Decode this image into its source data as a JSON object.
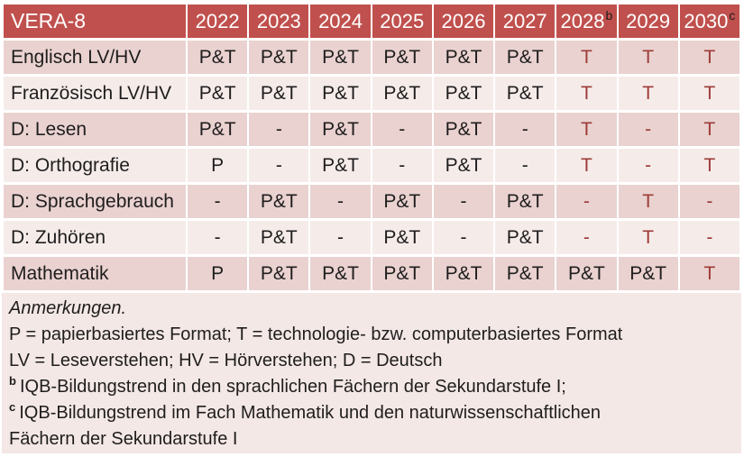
{
  "table": {
    "title": "VERA-8",
    "columns": [
      {
        "label": "2022",
        "sup": ""
      },
      {
        "label": "2023",
        "sup": ""
      },
      {
        "label": "2024",
        "sup": ""
      },
      {
        "label": "2025",
        "sup": ""
      },
      {
        "label": "2026",
        "sup": ""
      },
      {
        "label": "2027",
        "sup": ""
      },
      {
        "label": "2028",
        "sup": "b"
      },
      {
        "label": "2029",
        "sup": ""
      },
      {
        "label": "2030",
        "sup": "c"
      }
    ],
    "rows": [
      {
        "label": "Englisch LV/HV",
        "cells": [
          {
            "v": "P&T",
            "red": false
          },
          {
            "v": "P&T",
            "red": false
          },
          {
            "v": "P&T",
            "red": false
          },
          {
            "v": "P&T",
            "red": false
          },
          {
            "v": "P&T",
            "red": false
          },
          {
            "v": "P&T",
            "red": false
          },
          {
            "v": "T",
            "red": true
          },
          {
            "v": "T",
            "red": true
          },
          {
            "v": "T",
            "red": true
          }
        ]
      },
      {
        "label": "Französisch LV/HV",
        "cells": [
          {
            "v": "P&T",
            "red": false
          },
          {
            "v": "P&T",
            "red": false
          },
          {
            "v": "P&T",
            "red": false
          },
          {
            "v": "P&T",
            "red": false
          },
          {
            "v": "P&T",
            "red": false
          },
          {
            "v": "P&T",
            "red": false
          },
          {
            "v": "T",
            "red": true
          },
          {
            "v": "T",
            "red": true
          },
          {
            "v": "T",
            "red": true
          }
        ]
      },
      {
        "label": "D: Lesen",
        "cells": [
          {
            "v": "P&T",
            "red": false
          },
          {
            "v": "-",
            "red": false
          },
          {
            "v": "P&T",
            "red": false
          },
          {
            "v": "-",
            "red": false
          },
          {
            "v": "P&T",
            "red": false
          },
          {
            "v": "-",
            "red": false
          },
          {
            "v": "T",
            "red": true
          },
          {
            "v": "-",
            "red": true
          },
          {
            "v": "T",
            "red": true
          }
        ]
      },
      {
        "label": "D: Orthografie",
        "cells": [
          {
            "v": "P",
            "red": false
          },
          {
            "v": "-",
            "red": false
          },
          {
            "v": "P&T",
            "red": false
          },
          {
            "v": "-",
            "red": false
          },
          {
            "v": "P&T",
            "red": false
          },
          {
            "v": "-",
            "red": false
          },
          {
            "v": "T",
            "red": true
          },
          {
            "v": "-",
            "red": true
          },
          {
            "v": "T",
            "red": true
          }
        ]
      },
      {
        "label": "D: Sprachgebrauch",
        "cells": [
          {
            "v": "-",
            "red": false
          },
          {
            "v": "P&T",
            "red": false
          },
          {
            "v": "-",
            "red": false
          },
          {
            "v": "P&T",
            "red": false
          },
          {
            "v": "-",
            "red": false
          },
          {
            "v": "P&T",
            "red": false
          },
          {
            "v": "-",
            "red": true
          },
          {
            "v": "T",
            "red": true
          },
          {
            "v": "-",
            "red": true
          }
        ]
      },
      {
        "label": "D: Zuhören",
        "cells": [
          {
            "v": "-",
            "red": false
          },
          {
            "v": "P&T",
            "red": false
          },
          {
            "v": "-",
            "red": false
          },
          {
            "v": "P&T",
            "red": false
          },
          {
            "v": "-",
            "red": false
          },
          {
            "v": "P&T",
            "red": false
          },
          {
            "v": "-",
            "red": true
          },
          {
            "v": "T",
            "red": true
          },
          {
            "v": "-",
            "red": true
          }
        ]
      },
      {
        "label": "Mathematik",
        "cells": [
          {
            "v": "P",
            "red": false
          },
          {
            "v": "P&T",
            "red": false
          },
          {
            "v": "P&T",
            "red": false
          },
          {
            "v": "P&T",
            "red": false
          },
          {
            "v": "P&T",
            "red": false
          },
          {
            "v": "P&T",
            "red": false
          },
          {
            "v": "P&T",
            "red": false
          },
          {
            "v": "P&T",
            "red": false
          },
          {
            "v": "T",
            "red": true
          }
        ]
      }
    ]
  },
  "notes": {
    "heading": "Anmerkungen.",
    "legend_format": "P = papierbasiertes Format; T = technologie- bzw. computerbasiertes Format",
    "legend_abbrev": "LV = Leseverstehen; HV = Hörverstehen; D = Deutsch",
    "footnote_b": {
      "marker": "b",
      "text": "IQB-Bildungstrend in den sprachlichen Fächern der Sekundarstufe I;"
    },
    "footnote_c": {
      "marker": "c",
      "text": "IQB-Bildungstrend im Fach Mathematik und den naturwissenschaftlichen Fächern der Sekundarstufe I"
    }
  },
  "colors": {
    "header_bg": "#c0504d",
    "band_dark": "#e9d2d0",
    "band_light": "#f5ecea",
    "notes_bg": "#f3e8e5",
    "accent_text": "#9d3a37",
    "header_text": "#ffffff"
  }
}
